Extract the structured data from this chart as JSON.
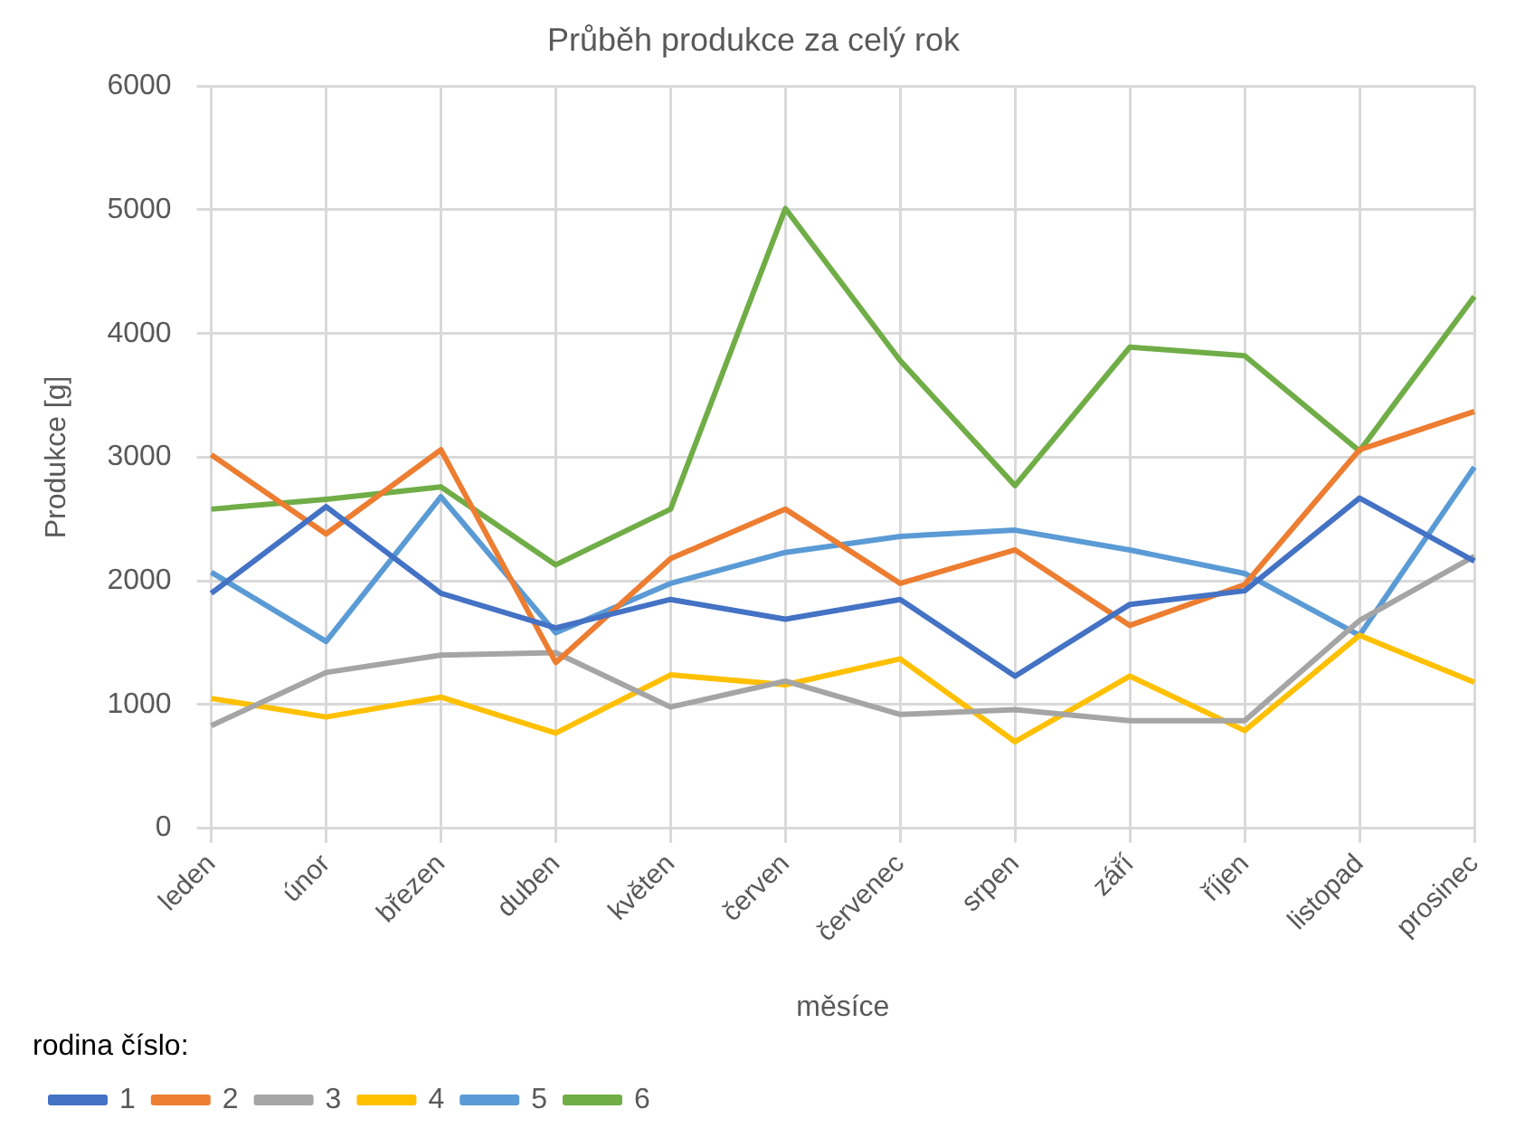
{
  "chart_data": {
    "type": "line",
    "title": "Průběh produkce za celý rok",
    "xlabel": "měsíce",
    "ylabel": "Produkce [g]",
    "legend_title": "rodina číslo:",
    "categories": [
      "leden",
      "únor",
      "březen",
      "duben",
      "květen",
      "červen",
      "červenec",
      "srpen",
      "září",
      "říjen",
      "listopad",
      "prosinec"
    ],
    "series": [
      {
        "name": "1",
        "color": "#4472c4",
        "values": [
          1900,
          2600,
          1900,
          1620,
          1850,
          1690,
          1850,
          1230,
          1810,
          1920,
          2670,
          2160
        ]
      },
      {
        "name": "2",
        "color": "#ed7d31",
        "values": [
          3020,
          2380,
          3060,
          1340,
          2180,
          2580,
          1980,
          2250,
          1640,
          1970,
          3060,
          3370
        ]
      },
      {
        "name": "3",
        "color": "#a5a5a5",
        "values": [
          830,
          1260,
          1400,
          1420,
          980,
          1190,
          920,
          960,
          870,
          870,
          1680,
          2200
        ]
      },
      {
        "name": "4",
        "color": "#ffc000",
        "values": [
          1050,
          900,
          1060,
          770,
          1240,
          1160,
          1370,
          700,
          1230,
          790,
          1560,
          1180
        ]
      },
      {
        "name": "5",
        "color": "#5b9bd5",
        "values": [
          2070,
          1510,
          2680,
          1580,
          1980,
          2230,
          2360,
          2410,
          2250,
          2060,
          1560,
          2920
        ]
      },
      {
        "name": "6",
        "color": "#70ad47",
        "values": [
          2580,
          2660,
          2760,
          2130,
          2580,
          5010,
          3780,
          2770,
          3890,
          3820,
          3050,
          4300
        ]
      }
    ],
    "ylim": [
      0,
      6000
    ],
    "yticks": [
      0,
      1000,
      2000,
      3000,
      4000,
      5000,
      6000
    ],
    "grid": true,
    "legend": "bottom",
    "marker": "none",
    "line_style": "solid"
  }
}
